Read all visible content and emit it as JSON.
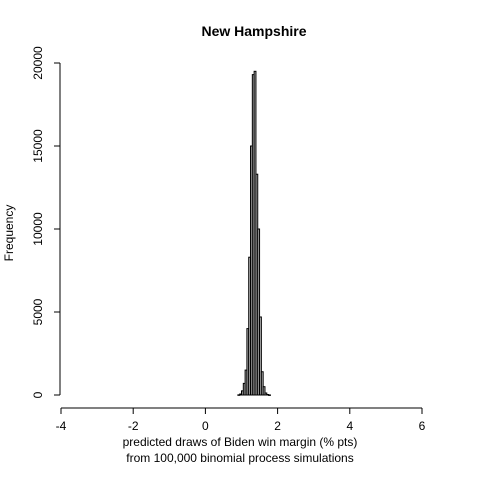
{
  "chart_data": {
    "type": "bar",
    "title": "New Hampshire",
    "xlabel_line1": "predicted draws of Biden win margin (% pts)",
    "xlabel_line2": "from 100,000 binomial process simulations",
    "ylabel": "Frequency",
    "xlim": [
      -4,
      6
    ],
    "ylim": [
      0,
      20000
    ],
    "x_ticks": [
      -4,
      -2,
      0,
      2,
      4,
      6
    ],
    "y_ticks": [
      0,
      5000,
      10000,
      15000,
      20000
    ],
    "bin_width": 0.05,
    "bins": [
      {
        "x": 0.9,
        "y": 10
      },
      {
        "x": 0.95,
        "y": 60
      },
      {
        "x": 1.0,
        "y": 250
      },
      {
        "x": 1.05,
        "y": 700
      },
      {
        "x": 1.1,
        "y": 1500
      },
      {
        "x": 1.15,
        "y": 4000
      },
      {
        "x": 1.2,
        "y": 8300
      },
      {
        "x": 1.25,
        "y": 15000
      },
      {
        "x": 1.3,
        "y": 19300
      },
      {
        "x": 1.35,
        "y": 19500
      },
      {
        "x": 1.4,
        "y": 13300
      },
      {
        "x": 1.45,
        "y": 10000
      },
      {
        "x": 1.5,
        "y": 4700
      },
      {
        "x": 1.55,
        "y": 1400
      },
      {
        "x": 1.6,
        "y": 500
      },
      {
        "x": 1.65,
        "y": 120
      },
      {
        "x": 1.7,
        "y": 30
      },
      {
        "x": 1.75,
        "y": 5
      }
    ]
  }
}
